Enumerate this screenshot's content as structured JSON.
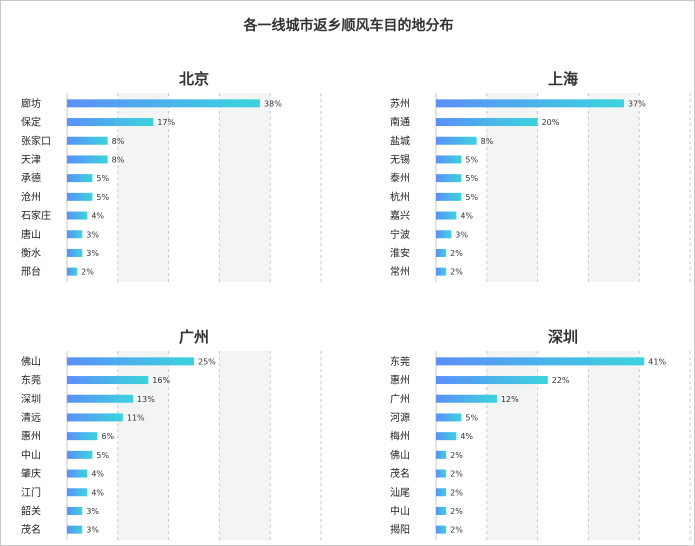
{
  "title": "各一线城市返乡顺风车目的地分布",
  "colors": {
    "bar_start": "#5b8ff9",
    "bar_end": "#3ad4dc",
    "stripe": "#f3f5f5",
    "grid": "#c8c8c8"
  },
  "chart_data": [
    {
      "type": "bar",
      "orientation": "horizontal",
      "title": "北京",
      "categories": [
        "廊坊",
        "保定",
        "张家口",
        "天津",
        "承德",
        "沧州",
        "石家庄",
        "唐山",
        "衡水",
        "邢台"
      ],
      "values": [
        38,
        17,
        8,
        8,
        5,
        5,
        4,
        3,
        3,
        2
      ],
      "value_labels": [
        "38%",
        "17%",
        "8%",
        "8%",
        "5%",
        "5%",
        "4%",
        "3%",
        "3%",
        "2%"
      ],
      "xlim": [
        0,
        50
      ],
      "grid": true
    },
    {
      "type": "bar",
      "orientation": "horizontal",
      "title": "上海",
      "categories": [
        "苏州",
        "南通",
        "盐城",
        "无锡",
        "泰州",
        "杭州",
        "嘉兴",
        "宁波",
        "淮安",
        "常州"
      ],
      "values": [
        37,
        20,
        8,
        5,
        5,
        5,
        4,
        3,
        2,
        2
      ],
      "value_labels": [
        "37%",
        "20%",
        "8%",
        "5%",
        "5%",
        "5%",
        "4%",
        "3%",
        "2%",
        "2%"
      ],
      "xlim": [
        0,
        50
      ],
      "grid": true
    },
    {
      "type": "bar",
      "orientation": "horizontal",
      "title": "广州",
      "categories": [
        "佛山",
        "东莞",
        "深圳",
        "清远",
        "惠州",
        "中山",
        "肇庆",
        "江门",
        "韶关",
        "茂名"
      ],
      "values": [
        25,
        16,
        13,
        11,
        6,
        5,
        4,
        4,
        3,
        3
      ],
      "value_labels": [
        "25%",
        "16%",
        "13%",
        "11%",
        "6%",
        "5%",
        "4%",
        "4%",
        "3%",
        "3%"
      ],
      "xlim": [
        0,
        50
      ],
      "grid": true
    },
    {
      "type": "bar",
      "orientation": "horizontal",
      "title": "深圳",
      "categories": [
        "东莞",
        "惠州",
        "广州",
        "河源",
        "梅州",
        "佛山",
        "茂名",
        "汕尾",
        "中山",
        "揭阳"
      ],
      "values": [
        41,
        22,
        12,
        5,
        4,
        2,
        2,
        2,
        2,
        2
      ],
      "value_labels": [
        "41%",
        "22%",
        "12%",
        "5%",
        "4%",
        "2%",
        "2%",
        "2%",
        "2%",
        "2%"
      ],
      "xlim": [
        0,
        50
      ],
      "grid": true
    }
  ]
}
